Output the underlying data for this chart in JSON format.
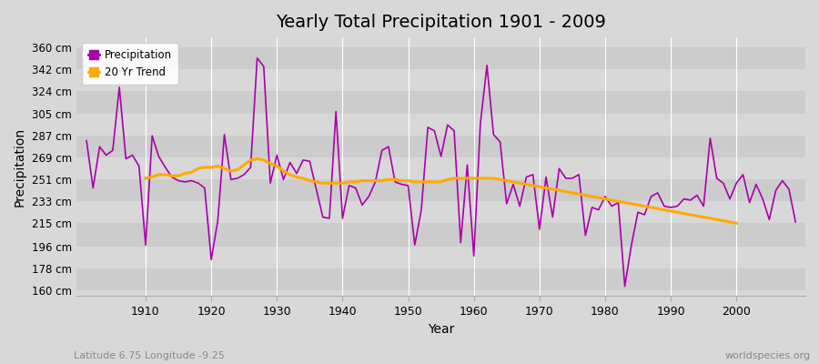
{
  "title": "Yearly Total Precipitation 1901 - 2009",
  "xlabel": "Year",
  "ylabel": "Precipitation",
  "subtitle": "Latitude 6.75 Longitude -9.25",
  "credit": "worldspecies.org",
  "bg_color": "#d8d8d8",
  "plot_bg_color": "#d8d8d8",
  "precip_color": "#aa00aa",
  "trend_color": "#ffaa00",
  "ytick_labels": [
    "160 cm",
    "178 cm",
    "196 cm",
    "215 cm",
    "233 cm",
    "251 cm",
    "269 cm",
    "287 cm",
    "305 cm",
    "324 cm",
    "342 cm",
    "360 cm"
  ],
  "ytick_values": [
    160,
    178,
    196,
    215,
    233,
    251,
    269,
    287,
    305,
    324,
    342,
    360
  ],
  "ylim": [
    155,
    368
  ],
  "xlim": [
    1899.5,
    2010.5
  ],
  "xticks": [
    1910,
    1920,
    1930,
    1940,
    1950,
    1960,
    1970,
    1980,
    1990,
    2000
  ],
  "years": [
    1901,
    1902,
    1903,
    1904,
    1905,
    1906,
    1907,
    1908,
    1909,
    1910,
    1911,
    1912,
    1913,
    1914,
    1915,
    1916,
    1917,
    1918,
    1919,
    1920,
    1921,
    1922,
    1923,
    1924,
    1925,
    1926,
    1927,
    1928,
    1929,
    1930,
    1931,
    1932,
    1933,
    1934,
    1935,
    1936,
    1937,
    1938,
    1939,
    1940,
    1941,
    1942,
    1943,
    1944,
    1945,
    1946,
    1947,
    1948,
    1949,
    1950,
    1951,
    1952,
    1953,
    1954,
    1955,
    1956,
    1957,
    1958,
    1959,
    1960,
    1961,
    1962,
    1963,
    1964,
    1965,
    1966,
    1967,
    1968,
    1969,
    1970,
    1971,
    1972,
    1973,
    1974,
    1975,
    1976,
    1977,
    1978,
    1979,
    1980,
    1981,
    1982,
    1983,
    1984,
    1985,
    1986,
    1987,
    1988,
    1989,
    1990,
    1991,
    1992,
    1993,
    1994,
    1995,
    1996,
    1997,
    1998,
    1999,
    2000,
    2001,
    2002,
    2003,
    2004,
    2005,
    2006,
    2007,
    2008,
    2009
  ],
  "precipitation": [
    283,
    244,
    278,
    271,
    275,
    327,
    268,
    271,
    262,
    197,
    287,
    270,
    261,
    253,
    250,
    249,
    250,
    248,
    244,
    185,
    217,
    288,
    251,
    252,
    255,
    261,
    351,
    344,
    248,
    271,
    251,
    265,
    256,
    267,
    266,
    243,
    220,
    219,
    307,
    219,
    246,
    244,
    230,
    237,
    249,
    275,
    278,
    249,
    247,
    246,
    197,
    226,
    294,
    291,
    270,
    296,
    291,
    199,
    263,
    188,
    297,
    345,
    288,
    282,
    231,
    247,
    229,
    253,
    255,
    210,
    253,
    220,
    260,
    252,
    252,
    255,
    205,
    228,
    226,
    237,
    229,
    232,
    163,
    197,
    224,
    222,
    237,
    240,
    229,
    228,
    229,
    235,
    234,
    238,
    229,
    285,
    252,
    248,
    235,
    248,
    255,
    232,
    247,
    235,
    218,
    242,
    250,
    243,
    216
  ],
  "trend_years": [
    1910,
    1911,
    1912,
    1913,
    1914,
    1915,
    1916,
    1917,
    1918,
    1919,
    1920,
    1921,
    1922,
    1923,
    1924,
    1925,
    1926,
    1927,
    1928,
    1929,
    1930,
    1931,
    1932,
    1933,
    1934,
    1935,
    1936,
    1937,
    1938,
    1939,
    1940,
    1941,
    1942,
    1943,
    1944,
    1945,
    1946,
    1947,
    1948,
    1949,
    1950,
    1951,
    1952,
    1953,
    1954,
    1955,
    1956,
    1957,
    1958,
    1959,
    1960,
    1961,
    1962,
    1963,
    1964,
    1965,
    1966,
    1967,
    1968,
    1969,
    1970,
    1971,
    1972,
    1973,
    1974,
    1975,
    1976,
    1977,
    1978,
    1979,
    1980,
    1981,
    1982,
    1983,
    1984,
    1985,
    1986,
    1987,
    1988,
    1989,
    1990,
    1991,
    1992,
    1993,
    1994,
    1995,
    1996,
    1997,
    1998,
    1999,
    2000
  ],
  "trend": [
    252,
    253,
    255,
    255,
    254,
    254,
    256,
    257,
    260,
    261,
    261,
    262,
    260,
    258,
    259,
    263,
    267,
    268,
    267,
    264,
    262,
    258,
    255,
    253,
    252,
    250,
    249,
    248,
    248,
    248,
    248,
    249,
    249,
    250,
    250,
    250,
    250,
    251,
    251,
    250,
    250,
    249,
    249,
    249,
    249,
    249,
    251,
    252,
    252,
    252,
    252,
    252,
    252,
    252,
    251,
    250,
    249,
    248,
    247,
    246,
    245,
    244,
    243,
    242,
    241,
    240,
    239,
    238,
    237,
    236,
    235,
    234,
    233,
    232,
    231,
    230,
    229,
    228,
    227,
    226,
    225,
    224,
    223,
    222,
    221,
    220,
    219,
    218,
    217,
    216,
    215
  ]
}
